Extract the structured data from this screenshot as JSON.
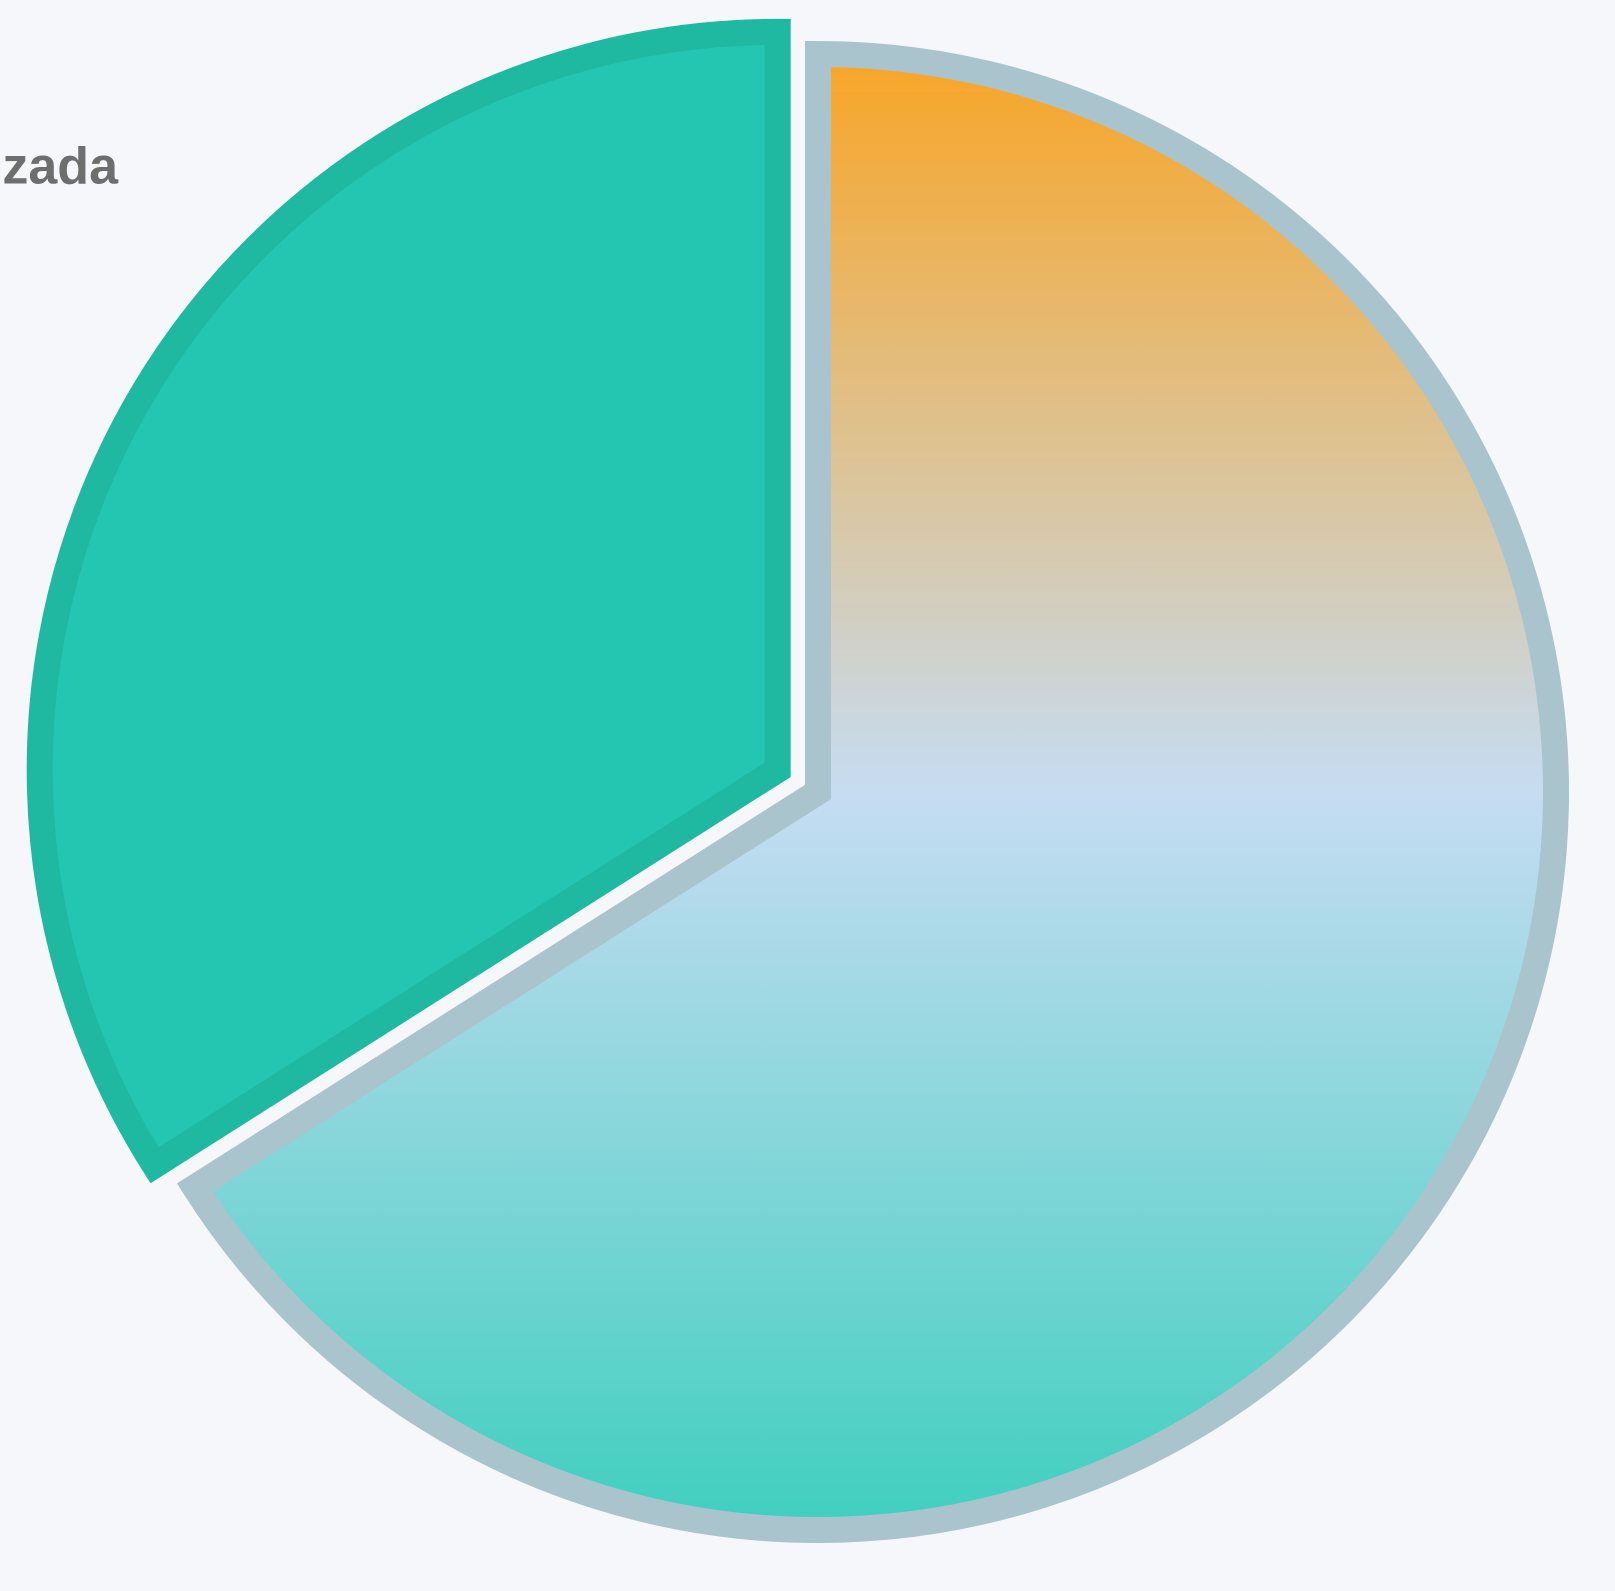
{
  "chart_data": {
    "type": "pie",
    "categories": [
      null,
      "zada"
    ],
    "values": [
      66,
      34
    ],
    "colors": [
      "#f8a526",
      "#24c6b2"
    ],
    "gradient": [
      [
        "#f8a526",
        "#c6dcf2",
        "#3fcfbf"
      ],
      null
    ],
    "strokes": [
      "#a9c4cc",
      "#1fb8a0"
    ],
    "exploded": [
      false,
      true
    ]
  }
}
